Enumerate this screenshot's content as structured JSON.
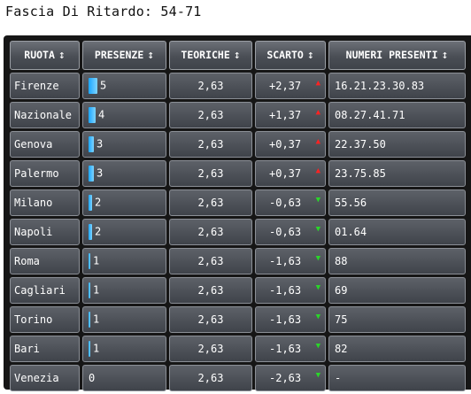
{
  "title": "Fascia Di Ritardo: 54-71",
  "columns": [
    {
      "label": "RUOTA",
      "sort": "↕"
    },
    {
      "label": "PRESENZE",
      "sort": "↕"
    },
    {
      "label": "TEORICHE",
      "sort": "↕"
    },
    {
      "label": "SCARTO",
      "sort": "↕"
    },
    {
      "label": "NUMERI PRESENTI",
      "sort": "↕"
    }
  ],
  "rows": [
    {
      "ruota": "Firenze",
      "presenze": "5",
      "bar": 5,
      "teoriche": "2,63",
      "scarto": "+2,37",
      "trend": "up",
      "numeri": "16.21.23.30.83"
    },
    {
      "ruota": "Nazionale",
      "presenze": "4",
      "bar": 4,
      "teoriche": "2,63",
      "scarto": "+1,37",
      "trend": "up",
      "numeri": "08.27.41.71"
    },
    {
      "ruota": "Genova",
      "presenze": "3",
      "bar": 3,
      "teoriche": "2,63",
      "scarto": "+0,37",
      "trend": "up",
      "numeri": "22.37.50"
    },
    {
      "ruota": "Palermo",
      "presenze": "3",
      "bar": 3,
      "teoriche": "2,63",
      "scarto": "+0,37",
      "trend": "up",
      "numeri": "23.75.85"
    },
    {
      "ruota": "Milano",
      "presenze": "2",
      "bar": 2,
      "teoriche": "2,63",
      "scarto": "-0,63",
      "trend": "down",
      "numeri": "55.56"
    },
    {
      "ruota": "Napoli",
      "presenze": "2",
      "bar": 2,
      "teoriche": "2,63",
      "scarto": "-0,63",
      "trend": "down",
      "numeri": "01.64"
    },
    {
      "ruota": "Roma",
      "presenze": "1",
      "bar": 1,
      "teoriche": "2,63",
      "scarto": "-1,63",
      "trend": "down",
      "numeri": "88"
    },
    {
      "ruota": "Cagliari",
      "presenze": "1",
      "bar": 1,
      "teoriche": "2,63",
      "scarto": "-1,63",
      "trend": "down",
      "numeri": "69"
    },
    {
      "ruota": "Torino",
      "presenze": "1",
      "bar": 1,
      "teoriche": "2,63",
      "scarto": "-1,63",
      "trend": "down",
      "numeri": "75"
    },
    {
      "ruota": "Bari",
      "presenze": "1",
      "bar": 1,
      "teoriche": "2,63",
      "scarto": "-1,63",
      "trend": "down",
      "numeri": "82"
    },
    {
      "ruota": "Venezia",
      "presenze": "0",
      "bar": 0,
      "teoriche": "2,63",
      "scarto": "-2,63",
      "trend": "down",
      "numeri": "-"
    }
  ],
  "icons": {
    "up": "triangle-up-icon",
    "down": "triangle-down-icon",
    "sort": "sort-arrows-icon",
    "bar": "presence-bar"
  },
  "colors": {
    "up": "#ff2222",
    "down": "#29d629",
    "bar": "#1aa6ff",
    "header_bg": "#4a4e55",
    "cell_bg": "#4c5057"
  }
}
